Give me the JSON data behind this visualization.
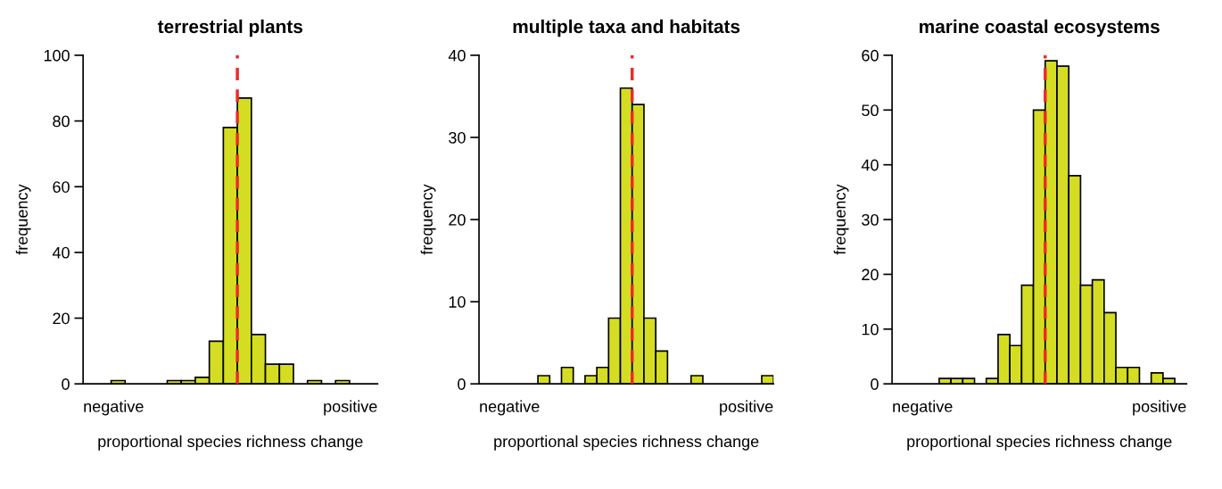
{
  "chart_data": [
    {
      "type": "bar",
      "title": "terrestrial plants",
      "xlabel": "proportional species richness change",
      "ylabel": "frequency",
      "color": "#d5dd22",
      "categories": [
        null,
        null,
        null,
        null,
        null,
        null,
        null,
        null,
        null,
        null,
        null,
        null,
        null,
        null,
        null,
        null,
        null,
        null,
        null,
        null,
        null
      ],
      "values": [
        0,
        0,
        1,
        0,
        0,
        0,
        1,
        1,
        2,
        13,
        78,
        87,
        15,
        6,
        6,
        0,
        1,
        0,
        1,
        0,
        0
      ],
      "ylim": [
        0,
        100
      ],
      "yticks": [
        0,
        20,
        40,
        60,
        80,
        100
      ],
      "annotations": [
        "negative",
        "positive"
      ],
      "grid": false
    },
    {
      "type": "bar",
      "title": "multiple taxa and habitats",
      "xlabel": "proportional species richness change",
      "ylabel": "frequency",
      "color": "#d5dd22",
      "categories": [
        null,
        null,
        null,
        null,
        null,
        null,
        null,
        null,
        null,
        null,
        null,
        null,
        null,
        null,
        null,
        null,
        null,
        null,
        null,
        null,
        null,
        null,
        null,
        null,
        null
      ],
      "values": [
        0,
        0,
        0,
        0,
        0,
        1,
        0,
        2,
        0,
        1,
        2,
        8,
        36,
        34,
        8,
        4,
        0,
        0,
        1,
        0,
        0,
        0,
        0,
        0,
        1
      ],
      "ylim": [
        0,
        40
      ],
      "yticks": [
        0,
        10,
        20,
        30,
        40
      ],
      "annotations": [
        "negative",
        "positive"
      ],
      "grid": false
    },
    {
      "type": "bar",
      "title": "marine coastal ecosystems",
      "xlabel": "proportional species richness change",
      "ylabel": "frequency",
      "color": "#d5dd22",
      "categories": [
        null,
        null,
        null,
        null,
        null,
        null,
        null,
        null,
        null,
        null,
        null,
        null,
        null,
        null,
        null,
        null,
        null,
        null,
        null,
        null,
        null,
        null,
        null,
        null,
        null
      ],
      "values": [
        0,
        0,
        0,
        0,
        1,
        1,
        1,
        0,
        1,
        9,
        7,
        18,
        50,
        59,
        58,
        38,
        18,
        19,
        13,
        3,
        3,
        0,
        2,
        1,
        0
      ],
      "ylim": [
        0,
        60
      ],
      "yticks": [
        0,
        10,
        20,
        30,
        40,
        50,
        60
      ],
      "annotations": [
        "negative",
        "positive"
      ],
      "grid": false
    }
  ]
}
